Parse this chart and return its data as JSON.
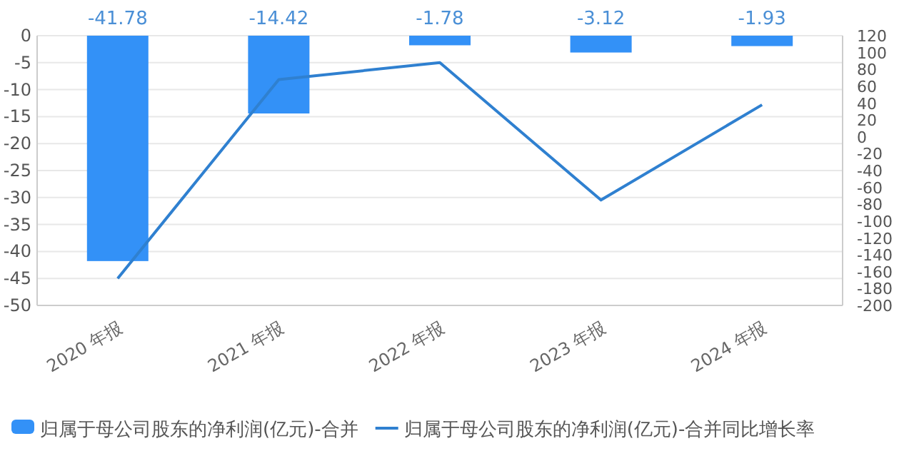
{
  "chart_data": {
    "type": "bar",
    "categories": [
      "2020 年报",
      "2021 年报",
      "2022 年报",
      "2023 年报",
      "2024 年报"
    ],
    "series": [
      {
        "name": "归属于母公司股东的净利润(亿元)-合并",
        "color": "#3391f7",
        "values": [
          -41.78,
          -14.42,
          -1.78,
          -3.12,
          -1.93
        ],
        "value_labels": [
          "-41.78",
          "-14.42",
          "-1.78",
          "-3.12",
          "-1.93"
        ]
      },
      {
        "name": "归属于母公司股东的净利润(亿元)-合并同比增长率",
        "type": "line",
        "axis": "y2",
        "color": "#2f80d0",
        "values": [
          -168,
          68,
          88,
          -75,
          38
        ]
      }
    ],
    "ylim": [
      -50,
      0
    ],
    "yticks": [
      -50,
      -45,
      -40,
      -35,
      -30,
      -25,
      -20,
      -15,
      -10,
      -5,
      0
    ],
    "y2lim": [
      -200,
      120
    ],
    "y2ticks": [
      -200,
      -180,
      -160,
      -140,
      -120,
      -100,
      -80,
      -60,
      -40,
      -20,
      0,
      20,
      40,
      60,
      80,
      100,
      120
    ],
    "grid": "y",
    "legend": "bottom"
  }
}
